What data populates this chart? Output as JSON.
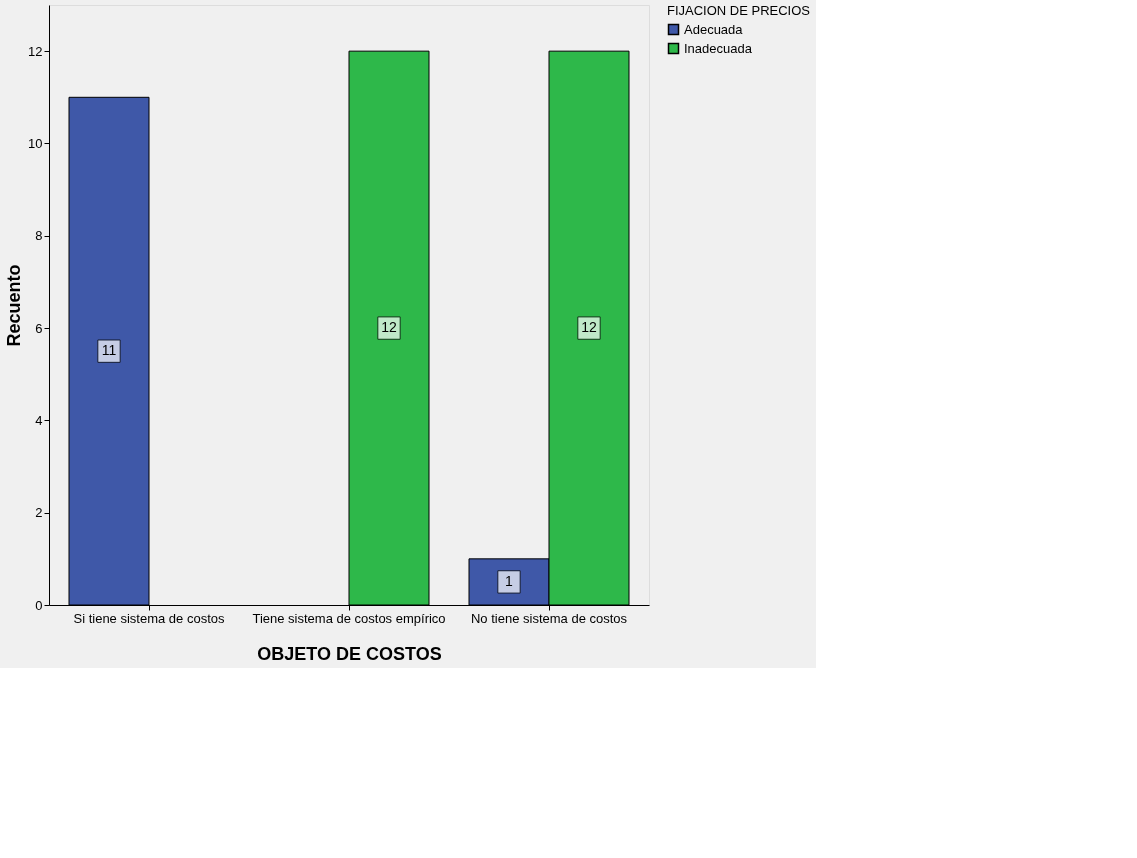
{
  "chart_data": {
    "type": "bar",
    "xlabel": "OBJETO DE COSTOS",
    "ylabel": "Recuento",
    "legend_title": "FIJACION DE PRECIOS",
    "categories": [
      "Si tiene sistema de costos",
      "Tiene sistema de costos empírico",
      "No tiene sistema de costos"
    ],
    "series": [
      {
        "name": "Adecuada",
        "color": "#3f58a8",
        "values": [
          11,
          null,
          1
        ]
      },
      {
        "name": "Inadecuada",
        "color": "#2eb84a",
        "values": [
          null,
          12,
          12
        ]
      }
    ],
    "ylim": [
      0,
      13
    ],
    "yticks": [
      0,
      2,
      4,
      6,
      8,
      10,
      12
    ],
    "grid": false,
    "legend": "top right",
    "data_labels": true
  }
}
